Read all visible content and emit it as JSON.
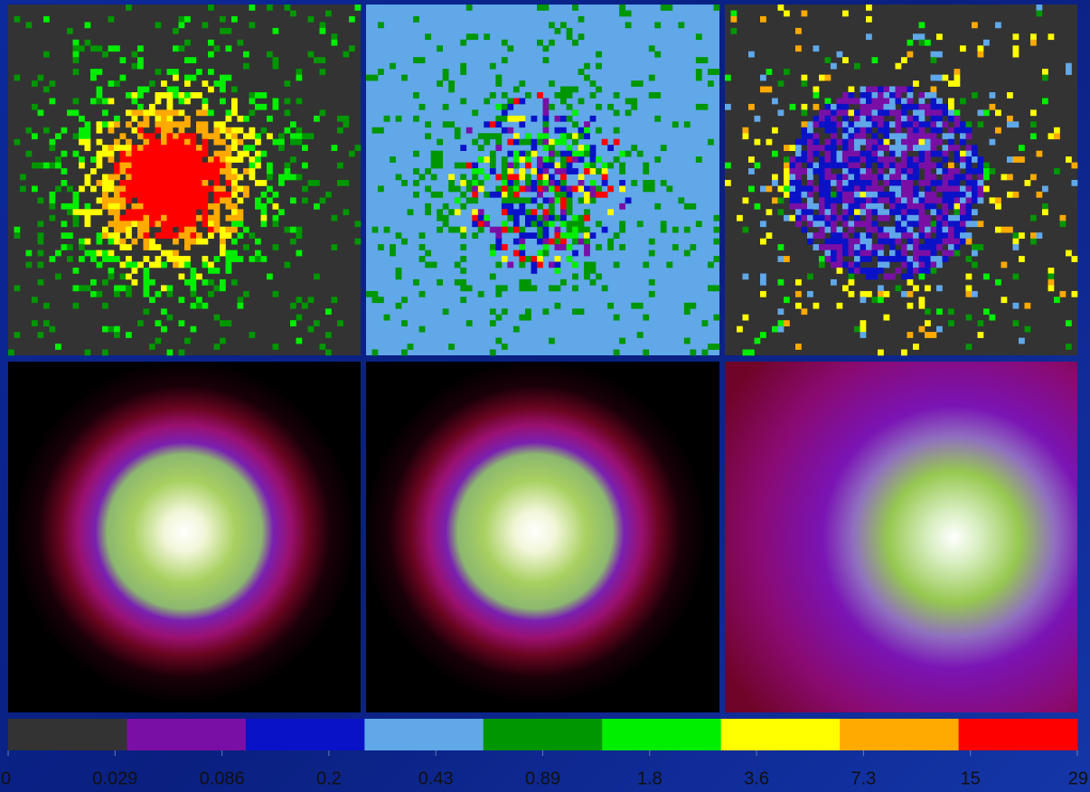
{
  "colorbar": {
    "colors": [
      "#333333",
      "#7a0fa6",
      "#0a12c8",
      "#60a8e8",
      "#009600",
      "#00ee00",
      "#ffff00",
      "#ffaa00",
      "#ff0000"
    ],
    "ticks": [
      "0",
      "0.029",
      "0.086",
      "0.2",
      "0.43",
      "0.89",
      "1.8",
      "3.6",
      "7.3",
      "15",
      "29"
    ]
  }
}
